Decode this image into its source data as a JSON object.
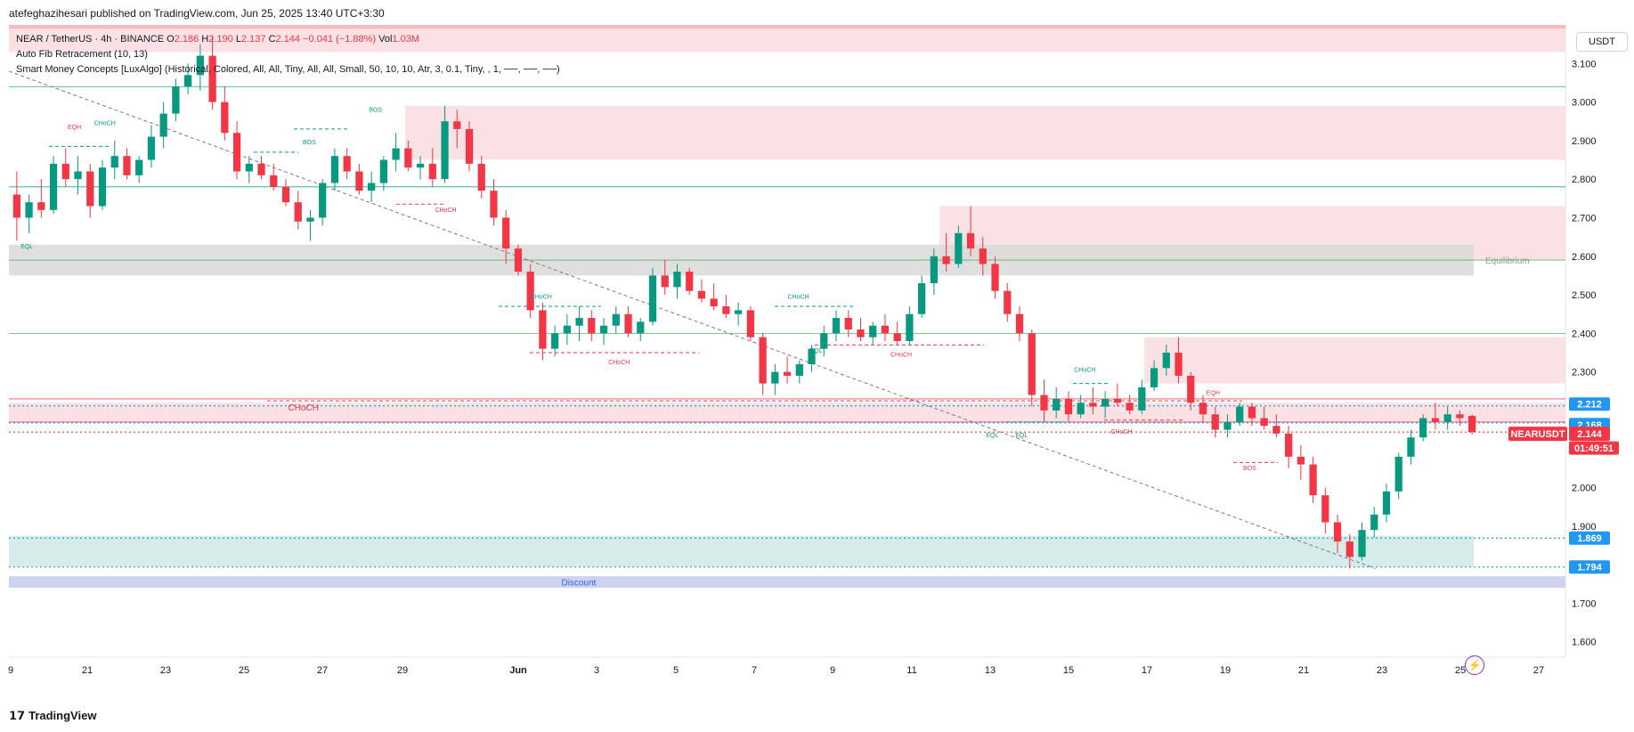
{
  "header": {
    "published_text": "atefeghazihesari published on TradingView.com, Jun 25, 2025 13:40 UTC+3:30"
  },
  "legend": {
    "symbol": "NEAR / TetherUS · 4h · BINANCE",
    "o_label": "O",
    "o": "2.186",
    "h_label": "H",
    "h": "2.190",
    "l_label": "L",
    "l": "2.137",
    "c_label": "C",
    "c": "2.144",
    "change": "−0.041 (−1.88%)",
    "vol_label": "Vol",
    "vol": "1.03M",
    "indicator1": "Auto Fib Retracement (10, 13)",
    "indicator2": "Smart Money Concepts [LuxAlgo] (Historical, Colored, All, All, Tiny, All, All, Small, 50, 10, 10, Atr, 3, 0.1, Tiny, , 1, ──, ──, ──)"
  },
  "currency_button": "USDT",
  "footer": {
    "logo_text": "TradingView"
  },
  "colors": {
    "up": "#089981",
    "down": "#f23645",
    "bearish_zone": "#f8d7da",
    "bullish_zone": "#cfe9e4",
    "equilibrium_zone": "#d9d9d9",
    "discount_zone": "#c5cbf0",
    "price_label_blue": "#2196f3",
    "price_label_red": "#f23645"
  },
  "chart_data": {
    "type": "candlestick",
    "symbol": "NEARUSDT",
    "timeframe": "4h",
    "y_axis": {
      "ticks": [
        "3.100",
        "3.000",
        "2.900",
        "2.800",
        "2.700",
        "2.600",
        "2.500",
        "2.400",
        "2.300",
        "2.000",
        "1.900",
        "1.700",
        "1.600"
      ],
      "ylim": [
        1.56,
        3.2
      ]
    },
    "x_axis": {
      "ticks": [
        "9",
        "21",
        "23",
        "25",
        "27",
        "29",
        "Jun",
        "3",
        "5",
        "7",
        "9",
        "11",
        "13",
        "15",
        "17",
        "19",
        "21",
        "23",
        "25",
        "27"
      ]
    },
    "price_labels": [
      {
        "value": "2.212",
        "kind": "blue"
      },
      {
        "value": "2.168",
        "kind": "blue"
      },
      {
        "value": "NEARUSDT",
        "kind": "red_name"
      },
      {
        "value": "2.144",
        "kind": "red"
      },
      {
        "value": "01:49:51",
        "kind": "red"
      },
      {
        "value": "1.869",
        "kind": "blue"
      },
      {
        "value": "1.794",
        "kind": "blue"
      }
    ],
    "zones": [
      {
        "name": "premium-top",
        "from": 3.13,
        "to": 3.23,
        "kind": "bearish"
      },
      {
        "name": "supply-1",
        "from": 2.85,
        "to": 2.99,
        "kind": "bearish"
      },
      {
        "name": "supply-2",
        "from": 2.59,
        "to": 2.73,
        "kind": "bearish"
      },
      {
        "name": "supply-3",
        "from": 2.27,
        "to": 2.39,
        "kind": "bearish"
      },
      {
        "name": "supply-4",
        "from": 2.17,
        "to": 2.22,
        "kind": "bearish"
      },
      {
        "name": "equilibrium",
        "from": 2.55,
        "to": 2.63,
        "kind": "equilibrium",
        "label": "Equilibrium"
      },
      {
        "name": "demand",
        "from": 1.795,
        "to": 1.875,
        "kind": "bullish"
      },
      {
        "name": "discount",
        "from": 1.74,
        "to": 1.77,
        "kind": "discount",
        "label": "Discount"
      }
    ],
    "fib_levels": [
      3.04,
      2.78,
      2.59,
      2.4,
      2.23,
      2.17
    ],
    "smc_labels": [
      {
        "t": "EQH",
        "x": 0.04,
        "y": 2.93,
        "kind": "down"
      },
      {
        "t": "CHoCH",
        "x": 0.058,
        "y": 2.94,
        "kind": "up"
      },
      {
        "t": "BOS",
        "x": 0.2,
        "y": 2.89,
        "kind": "up"
      },
      {
        "t": "BOS",
        "x": 0.245,
        "y": 2.975,
        "kind": "up"
      },
      {
        "t": "CHoCH",
        "x": 0.29,
        "y": 2.715,
        "kind": "down"
      },
      {
        "t": "EQL",
        "x": 0.008,
        "y": 2.62,
        "kind": "up"
      },
      {
        "t": "CHoCH",
        "x": 0.355,
        "y": 2.49,
        "kind": "up"
      },
      {
        "t": "CHoCH",
        "x": 0.408,
        "y": 2.32,
        "kind": "down"
      },
      {
        "t": "CHoCH",
        "x": 0.53,
        "y": 2.49,
        "kind": "up"
      },
      {
        "t": "EQL",
        "x": 0.545,
        "y": 2.35,
        "kind": "up"
      },
      {
        "t": "CHoCH",
        "x": 0.6,
        "y": 2.34,
        "kind": "down"
      },
      {
        "t": "CHoCH",
        "x": 0.19,
        "y": 2.2,
        "kind": "down"
      },
      {
        "t": "CHoCH",
        "x": 0.725,
        "y": 2.3,
        "kind": "up"
      },
      {
        "t": "EQL",
        "x": 0.665,
        "y": 2.13,
        "kind": "up"
      },
      {
        "t": "EQL",
        "x": 0.685,
        "y": 2.13,
        "kind": "up"
      },
      {
        "t": "CHoCH",
        "x": 0.75,
        "y": 2.14,
        "kind": "down"
      },
      {
        "t": "EQH",
        "x": 0.815,
        "y": 2.24,
        "kind": "down"
      },
      {
        "t": "BOS",
        "x": 0.84,
        "y": 2.045,
        "kind": "down"
      }
    ],
    "trendline": {
      "from": {
        "x": 0.0,
        "y": 3.08
      },
      "to": {
        "x": 0.93,
        "y": 1.79
      }
    },
    "candles": [
      {
        "o": 2.76,
        "h": 2.82,
        "l": 2.64,
        "c": 2.7
      },
      {
        "o": 2.7,
        "h": 2.76,
        "l": 2.66,
        "c": 2.74
      },
      {
        "o": 2.74,
        "h": 2.8,
        "l": 2.7,
        "c": 2.72
      },
      {
        "o": 2.72,
        "h": 2.86,
        "l": 2.71,
        "c": 2.84
      },
      {
        "o": 2.84,
        "h": 2.88,
        "l": 2.78,
        "c": 2.8
      },
      {
        "o": 2.8,
        "h": 2.86,
        "l": 2.76,
        "c": 2.82
      },
      {
        "o": 2.82,
        "h": 2.84,
        "l": 2.7,
        "c": 2.73
      },
      {
        "o": 2.73,
        "h": 2.85,
        "l": 2.72,
        "c": 2.83
      },
      {
        "o": 2.83,
        "h": 2.9,
        "l": 2.8,
        "c": 2.86
      },
      {
        "o": 2.86,
        "h": 2.88,
        "l": 2.8,
        "c": 2.81
      },
      {
        "o": 2.81,
        "h": 2.86,
        "l": 2.79,
        "c": 2.85
      },
      {
        "o": 2.85,
        "h": 2.94,
        "l": 2.83,
        "c": 2.91
      },
      {
        "o": 2.91,
        "h": 3.0,
        "l": 2.88,
        "c": 2.97
      },
      {
        "o": 2.97,
        "h": 3.06,
        "l": 2.95,
        "c": 3.04
      },
      {
        "o": 3.04,
        "h": 3.1,
        "l": 3.02,
        "c": 3.07
      },
      {
        "o": 3.07,
        "h": 3.15,
        "l": 3.03,
        "c": 3.12
      },
      {
        "o": 3.12,
        "h": 3.17,
        "l": 2.98,
        "c": 3.0
      },
      {
        "o": 3.0,
        "h": 3.04,
        "l": 2.9,
        "c": 2.92
      },
      {
        "o": 2.92,
        "h": 2.95,
        "l": 2.8,
        "c": 2.82
      },
      {
        "o": 2.82,
        "h": 2.86,
        "l": 2.79,
        "c": 2.84
      },
      {
        "o": 2.84,
        "h": 2.86,
        "l": 2.8,
        "c": 2.81
      },
      {
        "o": 2.81,
        "h": 2.84,
        "l": 2.77,
        "c": 2.78
      },
      {
        "o": 2.78,
        "h": 2.8,
        "l": 2.73,
        "c": 2.74
      },
      {
        "o": 2.74,
        "h": 2.77,
        "l": 2.67,
        "c": 2.69
      },
      {
        "o": 2.69,
        "h": 2.72,
        "l": 2.64,
        "c": 2.7
      },
      {
        "o": 2.7,
        "h": 2.8,
        "l": 2.68,
        "c": 2.79
      },
      {
        "o": 2.79,
        "h": 2.88,
        "l": 2.77,
        "c": 2.86
      },
      {
        "o": 2.86,
        "h": 2.88,
        "l": 2.8,
        "c": 2.82
      },
      {
        "o": 2.82,
        "h": 2.84,
        "l": 2.76,
        "c": 2.77
      },
      {
        "o": 2.77,
        "h": 2.82,
        "l": 2.74,
        "c": 2.79
      },
      {
        "o": 2.79,
        "h": 2.86,
        "l": 2.77,
        "c": 2.85
      },
      {
        "o": 2.85,
        "h": 2.92,
        "l": 2.82,
        "c": 2.88
      },
      {
        "o": 2.88,
        "h": 2.9,
        "l": 2.82,
        "c": 2.83
      },
      {
        "o": 2.83,
        "h": 2.86,
        "l": 2.8,
        "c": 2.84
      },
      {
        "o": 2.84,
        "h": 2.88,
        "l": 2.78,
        "c": 2.8
      },
      {
        "o": 2.8,
        "h": 2.99,
        "l": 2.79,
        "c": 2.95
      },
      {
        "o": 2.95,
        "h": 2.98,
        "l": 2.88,
        "c": 2.93
      },
      {
        "o": 2.93,
        "h": 2.95,
        "l": 2.82,
        "c": 2.84
      },
      {
        "o": 2.84,
        "h": 2.86,
        "l": 2.75,
        "c": 2.77
      },
      {
        "o": 2.77,
        "h": 2.8,
        "l": 2.68,
        "c": 2.7
      },
      {
        "o": 2.7,
        "h": 2.72,
        "l": 2.58,
        "c": 2.62
      },
      {
        "o": 2.62,
        "h": 2.63,
        "l": 2.55,
        "c": 2.56
      },
      {
        "o": 2.56,
        "h": 2.58,
        "l": 2.44,
        "c": 2.46
      },
      {
        "o": 2.46,
        "h": 2.48,
        "l": 2.33,
        "c": 2.36
      },
      {
        "o": 2.36,
        "h": 2.42,
        "l": 2.34,
        "c": 2.4
      },
      {
        "o": 2.4,
        "h": 2.45,
        "l": 2.37,
        "c": 2.42
      },
      {
        "o": 2.42,
        "h": 2.47,
        "l": 2.38,
        "c": 2.44
      },
      {
        "o": 2.44,
        "h": 2.46,
        "l": 2.38,
        "c": 2.4
      },
      {
        "o": 2.4,
        "h": 2.44,
        "l": 2.37,
        "c": 2.42
      },
      {
        "o": 2.42,
        "h": 2.47,
        "l": 2.4,
        "c": 2.45
      },
      {
        "o": 2.45,
        "h": 2.47,
        "l": 2.39,
        "c": 2.4
      },
      {
        "o": 2.4,
        "h": 2.44,
        "l": 2.38,
        "c": 2.43
      },
      {
        "o": 2.43,
        "h": 2.57,
        "l": 2.42,
        "c": 2.55
      },
      {
        "o": 2.55,
        "h": 2.59,
        "l": 2.5,
        "c": 2.52
      },
      {
        "o": 2.52,
        "h": 2.58,
        "l": 2.49,
        "c": 2.56
      },
      {
        "o": 2.56,
        "h": 2.57,
        "l": 2.5,
        "c": 2.51
      },
      {
        "o": 2.51,
        "h": 2.54,
        "l": 2.48,
        "c": 2.49
      },
      {
        "o": 2.49,
        "h": 2.53,
        "l": 2.46,
        "c": 2.47
      },
      {
        "o": 2.47,
        "h": 2.5,
        "l": 2.44,
        "c": 2.45
      },
      {
        "o": 2.45,
        "h": 2.48,
        "l": 2.42,
        "c": 2.46
      },
      {
        "o": 2.46,
        "h": 2.47,
        "l": 2.38,
        "c": 2.39
      },
      {
        "o": 2.39,
        "h": 2.4,
        "l": 2.24,
        "c": 2.27
      },
      {
        "o": 2.27,
        "h": 2.32,
        "l": 2.24,
        "c": 2.3
      },
      {
        "o": 2.3,
        "h": 2.34,
        "l": 2.27,
        "c": 2.29
      },
      {
        "o": 2.29,
        "h": 2.33,
        "l": 2.27,
        "c": 2.32
      },
      {
        "o": 2.32,
        "h": 2.37,
        "l": 2.3,
        "c": 2.36
      },
      {
        "o": 2.36,
        "h": 2.42,
        "l": 2.34,
        "c": 2.4
      },
      {
        "o": 2.4,
        "h": 2.46,
        "l": 2.38,
        "c": 2.44
      },
      {
        "o": 2.44,
        "h": 2.46,
        "l": 2.39,
        "c": 2.41
      },
      {
        "o": 2.41,
        "h": 2.44,
        "l": 2.38,
        "c": 2.39
      },
      {
        "o": 2.39,
        "h": 2.43,
        "l": 2.37,
        "c": 2.42
      },
      {
        "o": 2.42,
        "h": 2.45,
        "l": 2.38,
        "c": 2.4
      },
      {
        "o": 2.4,
        "h": 2.43,
        "l": 2.37,
        "c": 2.38
      },
      {
        "o": 2.38,
        "h": 2.47,
        "l": 2.37,
        "c": 2.45
      },
      {
        "o": 2.45,
        "h": 2.55,
        "l": 2.44,
        "c": 2.53
      },
      {
        "o": 2.53,
        "h": 2.62,
        "l": 2.5,
        "c": 2.6
      },
      {
        "o": 2.6,
        "h": 2.66,
        "l": 2.56,
        "c": 2.58
      },
      {
        "o": 2.58,
        "h": 2.68,
        "l": 2.57,
        "c": 2.66
      },
      {
        "o": 2.66,
        "h": 2.73,
        "l": 2.6,
        "c": 2.62
      },
      {
        "o": 2.62,
        "h": 2.65,
        "l": 2.55,
        "c": 2.58
      },
      {
        "o": 2.58,
        "h": 2.6,
        "l": 2.49,
        "c": 2.51
      },
      {
        "o": 2.51,
        "h": 2.53,
        "l": 2.43,
        "c": 2.45
      },
      {
        "o": 2.45,
        "h": 2.47,
        "l": 2.38,
        "c": 2.4
      },
      {
        "o": 2.4,
        "h": 2.41,
        "l": 2.21,
        "c": 2.24
      },
      {
        "o": 2.24,
        "h": 2.28,
        "l": 2.17,
        "c": 2.2
      },
      {
        "o": 2.2,
        "h": 2.26,
        "l": 2.18,
        "c": 2.23
      },
      {
        "o": 2.23,
        "h": 2.25,
        "l": 2.17,
        "c": 2.19
      },
      {
        "o": 2.19,
        "h": 2.24,
        "l": 2.18,
        "c": 2.22
      },
      {
        "o": 2.22,
        "h": 2.26,
        "l": 2.19,
        "c": 2.21
      },
      {
        "o": 2.21,
        "h": 2.25,
        "l": 2.18,
        "c": 2.23
      },
      {
        "o": 2.23,
        "h": 2.27,
        "l": 2.21,
        "c": 2.22
      },
      {
        "o": 2.22,
        "h": 2.24,
        "l": 2.19,
        "c": 2.2
      },
      {
        "o": 2.2,
        "h": 2.28,
        "l": 2.19,
        "c": 2.26
      },
      {
        "o": 2.26,
        "h": 2.33,
        "l": 2.25,
        "c": 2.31
      },
      {
        "o": 2.31,
        "h": 2.37,
        "l": 2.29,
        "c": 2.35
      },
      {
        "o": 2.35,
        "h": 2.39,
        "l": 2.27,
        "c": 2.29
      },
      {
        "o": 2.29,
        "h": 2.3,
        "l": 2.2,
        "c": 2.22
      },
      {
        "o": 2.22,
        "h": 2.24,
        "l": 2.17,
        "c": 2.19
      },
      {
        "o": 2.19,
        "h": 2.21,
        "l": 2.13,
        "c": 2.15
      },
      {
        "o": 2.15,
        "h": 2.19,
        "l": 2.13,
        "c": 2.17
      },
      {
        "o": 2.17,
        "h": 2.22,
        "l": 2.16,
        "c": 2.21
      },
      {
        "o": 2.21,
        "h": 2.22,
        "l": 2.16,
        "c": 2.18
      },
      {
        "o": 2.18,
        "h": 2.21,
        "l": 2.15,
        "c": 2.16
      },
      {
        "o": 2.16,
        "h": 2.19,
        "l": 2.13,
        "c": 2.14
      },
      {
        "o": 2.14,
        "h": 2.16,
        "l": 2.05,
        "c": 2.08
      },
      {
        "o": 2.08,
        "h": 2.11,
        "l": 2.02,
        "c": 2.06
      },
      {
        "o": 2.06,
        "h": 2.08,
        "l": 1.96,
        "c": 1.98
      },
      {
        "o": 1.98,
        "h": 2.0,
        "l": 1.88,
        "c": 1.91
      },
      {
        "o": 1.91,
        "h": 1.93,
        "l": 1.83,
        "c": 1.86
      },
      {
        "o": 1.86,
        "h": 1.88,
        "l": 1.79,
        "c": 1.82
      },
      {
        "o": 1.82,
        "h": 1.91,
        "l": 1.81,
        "c": 1.89
      },
      {
        "o": 1.89,
        "h": 1.95,
        "l": 1.87,
        "c": 1.93
      },
      {
        "o": 1.93,
        "h": 2.01,
        "l": 1.91,
        "c": 1.99
      },
      {
        "o": 1.99,
        "h": 2.09,
        "l": 1.97,
        "c": 2.08
      },
      {
        "o": 2.08,
        "h": 2.15,
        "l": 2.06,
        "c": 2.13
      },
      {
        "o": 2.13,
        "h": 2.19,
        "l": 2.12,
        "c": 2.18
      },
      {
        "o": 2.18,
        "h": 2.22,
        "l": 2.15,
        "c": 2.17
      },
      {
        "o": 2.17,
        "h": 2.21,
        "l": 2.15,
        "c": 2.19
      },
      {
        "o": 2.19,
        "h": 2.2,
        "l": 2.16,
        "c": 2.18
      },
      {
        "o": 2.186,
        "h": 2.19,
        "l": 2.137,
        "c": 2.144
      }
    ]
  }
}
